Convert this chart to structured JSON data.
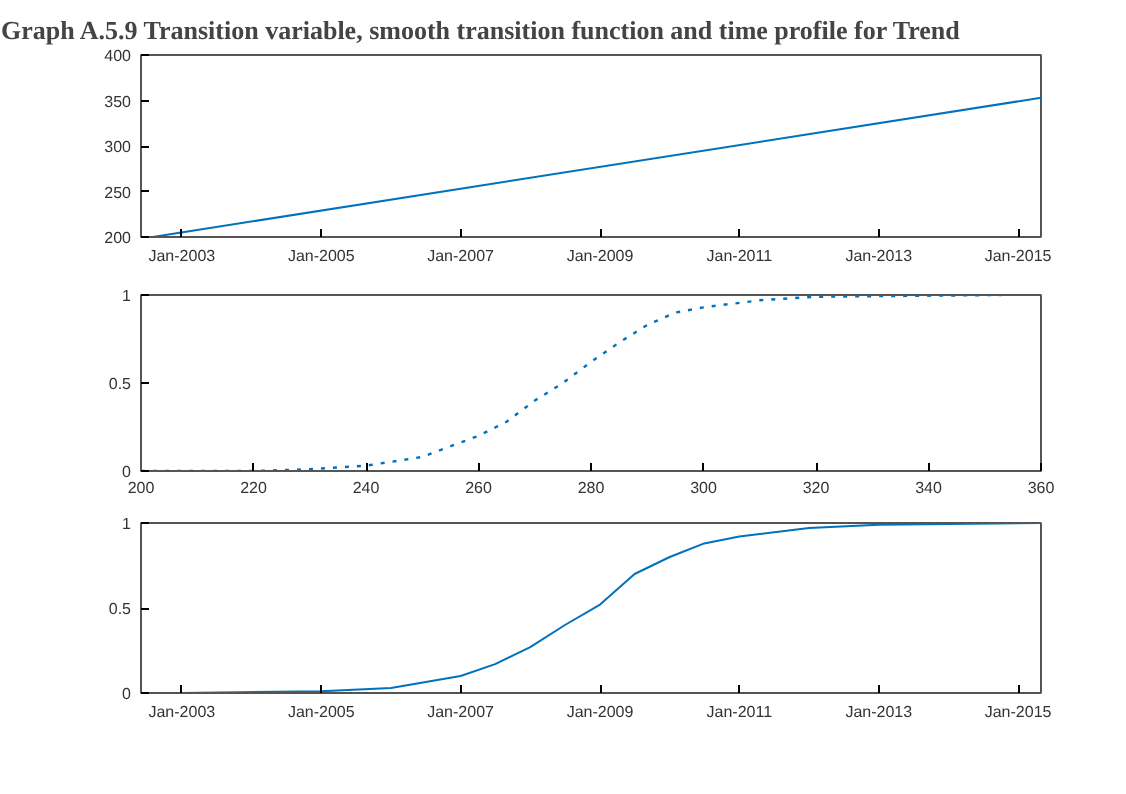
{
  "chart_data": [
    {
      "type": "line",
      "title": "Graph A.5.9 Transition variable, smooth transition function and time profile for Trend",
      "x": [
        "2002-08",
        "2015-05"
      ],
      "series": [
        {
          "color": "#0072bd",
          "values": [
            200,
            353
          ]
        }
      ],
      "xlim": [
        "2002-06",
        "2015-05"
      ],
      "xticks": [
        {
          "value": "2003-01",
          "label": "Jan-2003"
        },
        {
          "value": "2005-01",
          "label": "Jan-2005"
        },
        {
          "value": "2007-01",
          "label": "Jan-2007"
        },
        {
          "value": "2009-01",
          "label": "Jan-2009"
        },
        {
          "value": "2011-01",
          "label": "Jan-2011"
        },
        {
          "value": "2013-01",
          "label": "Jan-2013"
        },
        {
          "value": "2015-01",
          "label": "Jan-2015"
        }
      ],
      "ylim": [
        200,
        400
      ],
      "yticks": [
        200,
        250,
        300,
        350,
        400
      ],
      "line_style": "solid"
    },
    {
      "type": "line",
      "x": [
        200,
        220,
        230,
        240,
        250,
        260,
        265,
        270,
        275,
        280,
        285,
        290,
        295,
        300,
        310,
        320,
        353
      ],
      "series": [
        {
          "color": "#0072bd",
          "values": [
            0,
            0,
            0.01,
            0.03,
            0.08,
            0.2,
            0.28,
            0.4,
            0.5,
            0.62,
            0.73,
            0.83,
            0.9,
            0.93,
            0.97,
            0.99,
            1
          ]
        }
      ],
      "xlim": [
        200,
        360
      ],
      "xticks": [
        200,
        220,
        240,
        260,
        280,
        300,
        320,
        340,
        360
      ],
      "ylim": [
        0,
        1
      ],
      "yticks": [
        0,
        0.5,
        1
      ],
      "line_style": "dotted"
    },
    {
      "type": "line",
      "x": [
        "2002-08",
        "2003-01",
        "2005-01",
        "2006-01",
        "2007-01",
        "2007-07",
        "2008-01",
        "2008-07",
        "2009-01",
        "2009-07",
        "2010-01",
        "2010-07",
        "2011-01",
        "2012-01",
        "2013-01",
        "2015-05"
      ],
      "series": [
        {
          "color": "#0072bd",
          "values": [
            0,
            0,
            0.01,
            0.03,
            0.1,
            0.17,
            0.27,
            0.4,
            0.52,
            0.7,
            0.8,
            0.88,
            0.92,
            0.97,
            0.99,
            1
          ]
        }
      ],
      "xlim": [
        "2002-06",
        "2015-05"
      ],
      "xticks": [
        {
          "value": "2003-01",
          "label": "Jan-2003"
        },
        {
          "value": "2005-01",
          "label": "Jan-2005"
        },
        {
          "value": "2007-01",
          "label": "Jan-2007"
        },
        {
          "value": "2009-01",
          "label": "Jan-2009"
        },
        {
          "value": "2011-01",
          "label": "Jan-2011"
        },
        {
          "value": "2013-01",
          "label": "Jan-2013"
        },
        {
          "value": "2015-01",
          "label": "Jan-2015"
        }
      ],
      "ylim": [
        0,
        1
      ],
      "yticks": [
        0,
        0.5,
        1
      ],
      "line_style": "solid"
    }
  ]
}
